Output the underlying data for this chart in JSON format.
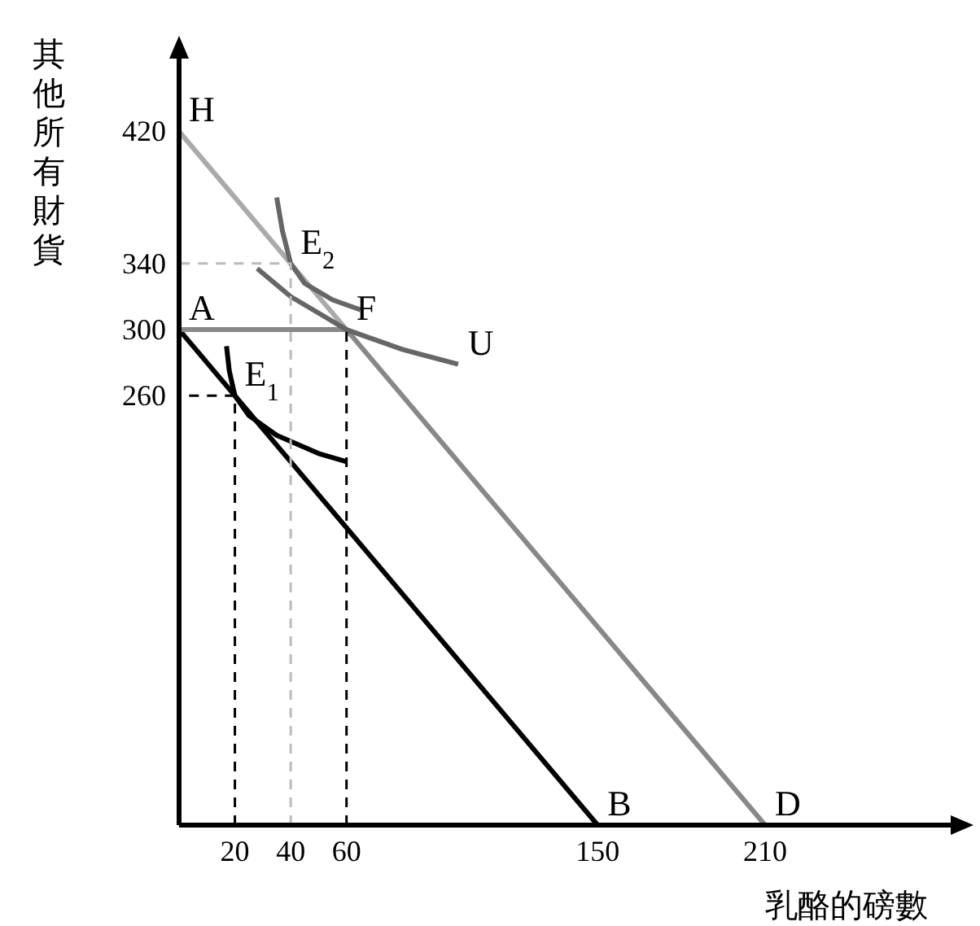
{
  "chart_data": {
    "type": "line",
    "xlabel": "乳酪的磅數",
    "ylabel": "其他所有財貨",
    "xlim": [
      0,
      280
    ],
    "ylim": [
      0,
      470
    ],
    "xticks": [
      20,
      40,
      60,
      150,
      210
    ],
    "yticks": [
      260,
      300,
      340,
      420
    ],
    "grid": false,
    "marker": "none",
    "series": [
      {
        "color": "#000000",
        "x": [
          0,
          150
        ],
        "values": [
          300,
          0
        ],
        "line_style": "solid"
      },
      {
        "color": "#aaaaaa",
        "x": [
          0,
          60
        ],
        "values": [
          420,
          300
        ],
        "line_style": "solid"
      },
      {
        "color": "#888888",
        "x": [
          0,
          60,
          210
        ],
        "values": [
          300,
          300,
          0
        ],
        "line_style": "solid"
      },
      {
        "color": "#000000",
        "x": [
          17,
          18,
          20,
          25,
          35,
          50,
          60
        ],
        "values": [
          290,
          275,
          260,
          248,
          236,
          225,
          220
        ],
        "line_style": "solid"
      },
      {
        "color": "#666666",
        "x": [
          35,
          37,
          40,
          45,
          55,
          65
        ],
        "values": [
          380,
          360,
          340,
          328,
          318,
          312
        ],
        "line_style": "solid"
      },
      {
        "color": "#666666",
        "x": [
          28,
          40,
          50,
          60,
          80,
          100
        ],
        "values": [
          337,
          320,
          310,
          300,
          288,
          279
        ],
        "line_style": "solid"
      },
      {
        "color": "#000000",
        "x": [
          20,
          20,
          0
        ],
        "values": [
          0,
          260,
          260
        ],
        "line_style": "dashed"
      },
      {
        "color": "#bbbbbb",
        "x": [
          40,
          40,
          0
        ],
        "values": [
          0,
          340,
          340
        ],
        "line_style": "dashed"
      },
      {
        "color": "#000000",
        "x": [
          60,
          60
        ],
        "values": [
          0,
          300
        ],
        "line_style": "dashed"
      }
    ],
    "annotations": [
      {
        "text": "H",
        "x": 0,
        "y": 420
      },
      {
        "text": "A",
        "x": 0,
        "y": 300
      },
      {
        "text": "E$_{1}$",
        "x": 20,
        "y": 260
      },
      {
        "text": "E$_{2}$",
        "x": 40,
        "y": 340
      },
      {
        "text": "F",
        "x": 60,
        "y": 300
      },
      {
        "text": "U",
        "x": 100,
        "y": 279
      },
      {
        "text": "B",
        "x": 150,
        "y": 0
      },
      {
        "text": "D",
        "x": 210,
        "y": 0
      }
    ]
  }
}
